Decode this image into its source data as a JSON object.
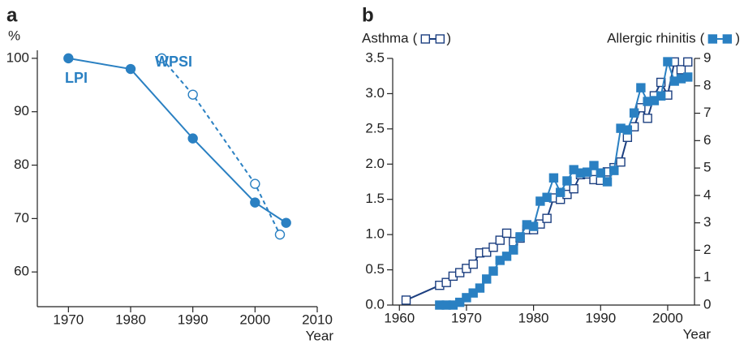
{
  "chart_data": [
    {
      "type": "line",
      "panel_label": "a",
      "y_label": "%",
      "x_label": "Year",
      "xlim": [
        1965,
        2010
      ],
      "xticks": [
        1970,
        1980,
        1990,
        2000,
        2010
      ],
      "ylim": [
        53.5,
        101.5
      ],
      "yticks": [
        60,
        70,
        80,
        90,
        100
      ],
      "series": [
        {
          "name": "LPI",
          "color": "#2a80c2",
          "line_style": "solid",
          "marker": "filled-circle",
          "x": [
            1970,
            1980,
            1990,
            2000,
            2005
          ],
          "values": [
            100,
            98,
            85,
            73,
            69.2
          ]
        },
        {
          "name": "WPSI",
          "color": "#2a80c2",
          "line_style": "dashed",
          "marker": "open-circle",
          "x": [
            1985,
            1990,
            2000,
            2004
          ],
          "values": [
            100,
            93.2,
            76.5,
            67
          ]
        }
      ]
    },
    {
      "type": "line",
      "panel_label": "b",
      "x_label": "Year",
      "legend_brackets": [
        "(",
        ")"
      ],
      "xlim": [
        1959,
        2004
      ],
      "xticks": [
        1960,
        1970,
        1980,
        1990,
        2000
      ],
      "ylim": [
        0,
        3.5
      ],
      "yticks": [
        {
          "value": 0,
          "label": "0.0"
        },
        {
          "value": 0.5,
          "label": "0.5"
        },
        {
          "value": 1,
          "label": "1.0"
        },
        {
          "value": 1.5,
          "label": "1.5"
        },
        {
          "value": 2,
          "label": "2.0"
        },
        {
          "value": 2.5,
          "label": "2.5"
        },
        {
          "value": 3,
          "label": "3.0"
        },
        {
          "value": 3.5,
          "label": "3.5"
        }
      ],
      "y2lim": [
        0,
        9
      ],
      "y2ticks": [
        0,
        1,
        2,
        3,
        4,
        5,
        6,
        7,
        8,
        9
      ],
      "series": [
        {
          "name": "Asthma",
          "color": "#1c3f80",
          "line_style": "solid",
          "marker": "open-square",
          "x": [
            1961,
            1966,
            1967,
            1968,
            1969,
            1970,
            1971,
            1972,
            1973,
            1974,
            1975,
            1976,
            1977,
            1978,
            1979,
            1980,
            1981,
            1982,
            1983,
            1984,
            1985,
            1986,
            1987,
            1988,
            1989,
            1990,
            1991,
            1992,
            1993,
            1994,
            1995,
            1996,
            1997,
            1998,
            1999,
            2000,
            2001,
            2002,
            2003
          ],
          "values": [
            0.07,
            0.28,
            0.32,
            0.41,
            0.46,
            0.52,
            0.58,
            0.74,
            0.75,
            0.82,
            0.92,
            1.02,
            0.9,
            0.95,
            1.07,
            1.07,
            1.15,
            1.23,
            1.52,
            1.5,
            1.57,
            1.65,
            1.85,
            1.86,
            1.78,
            1.77,
            1.89,
            1.95,
            2.03,
            2.38,
            2.53,
            2.8,
            2.65,
            2.97,
            3.16,
            2.98,
            3.45,
            3.34,
            3.45
          ]
        },
        {
          "name": "Allergic rhinitis",
          "color": "#2a80c2",
          "line_style": "solid",
          "marker": "filled-square",
          "axis": "y2",
          "x": [
            1966,
            1967,
            1968,
            1969,
            1970,
            1971,
            1972,
            1973,
            1974,
            1975,
            1976,
            1977,
            1978,
            1979,
            1980,
            1981,
            1982,
            1983,
            1984,
            1985,
            1986,
            1987,
            1988,
            1989,
            1990,
            1991,
            1992,
            1993,
            1994,
            1995,
            1996,
            1997,
            1998,
            1999,
            2000,
            2001,
            2002,
            2003
          ],
          "values": [
            0,
            0,
            0,
            0.1,
            0.27,
            0.44,
            0.62,
            0.95,
            1.24,
            1.63,
            1.78,
            2.01,
            2.49,
            2.93,
            2.87,
            3.79,
            3.93,
            4.64,
            4.11,
            4.53,
            4.94,
            4.82,
            4.85,
            5.09,
            4.82,
            4.5,
            4.91,
            6.45,
            6.39,
            7.01,
            7.93,
            7.43,
            7.46,
            7.63,
            8.88,
            8.17,
            8.26,
            8.32
          ]
        }
      ]
    }
  ]
}
